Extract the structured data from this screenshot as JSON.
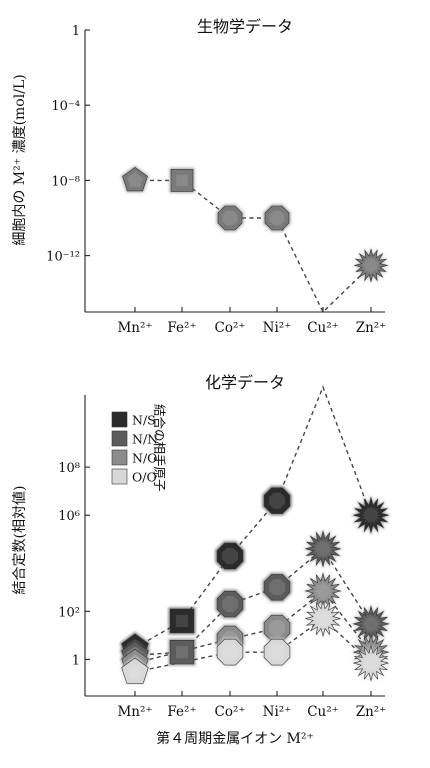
{
  "xlabel": "第４周期金属イオン M²⁺",
  "chart_data": [
    {
      "type": "line",
      "title": "生物学データ",
      "ylabel": "細胞内の M²⁺ 濃度(mol/L)",
      "y_scale": "log",
      "ylim": [
        1e-15,
        1
      ],
      "y_ticks": [
        {
          "v": 1,
          "label": "1"
        },
        {
          "v": 0.0001,
          "label": "10⁻⁴"
        },
        {
          "v": 1e-08,
          "label": "10⁻⁸"
        },
        {
          "v": 1e-12,
          "label": "10⁻¹²"
        }
      ],
      "categories": [
        "Mn²⁺",
        "Fe²⁺",
        "Co²⁺",
        "Ni²⁺",
        "Cu²⁺",
        "Zn²⁺"
      ],
      "values": [
        1e-08,
        1e-08,
        1e-10,
        1e-10,
        1e-15,
        3e-13
      ],
      "markers": [
        "pentagon",
        "square",
        "octagon",
        "octagon",
        "none",
        "star"
      ],
      "marker_color": "#7a7a7a"
    },
    {
      "type": "line",
      "title": "化学データ",
      "ylabel": "結合定数(相対値)",
      "y_scale": "log",
      "ylim": [
        0.03,
        100000000000.0
      ],
      "y_ticks": [
        {
          "v": 1,
          "label": "1"
        },
        {
          "v": 100,
          "label": "10²"
        },
        {
          "v": 1000000.0,
          "label": "10⁶"
        },
        {
          "v": 100000000.0,
          "label": "10⁸"
        }
      ],
      "categories": [
        "Mn²⁺",
        "Fe²⁺",
        "Co²⁺",
        "Ni²⁺",
        "Cu²⁺",
        "Zn²⁺"
      ],
      "markers": [
        "pentagon",
        "square",
        "octagon",
        "octagon",
        "star",
        "star"
      ],
      "legend": {
        "title": "結合の相手原子",
        "placement": "top-left"
      },
      "series": [
        {
          "name": "N/S",
          "color": "#2b2b2b",
          "values": [
            3,
            40,
            20000,
            4000000,
            500000000000.0,
            1000000
          ]
        },
        {
          "name": "N/N",
          "color": "#5c5c5c",
          "values": [
            1.5,
            2,
            200,
            1000,
            40000,
            30
          ]
        },
        {
          "name": "N/O",
          "color": "#8c8c8c",
          "values": [
            0.7,
            null,
            7,
            20,
            700,
            2
          ]
        },
        {
          "name": "O/O",
          "color": "#d8d8d8",
          "values": [
            0.3,
            null,
            2,
            2,
            50,
            0.7
          ]
        }
      ]
    }
  ]
}
